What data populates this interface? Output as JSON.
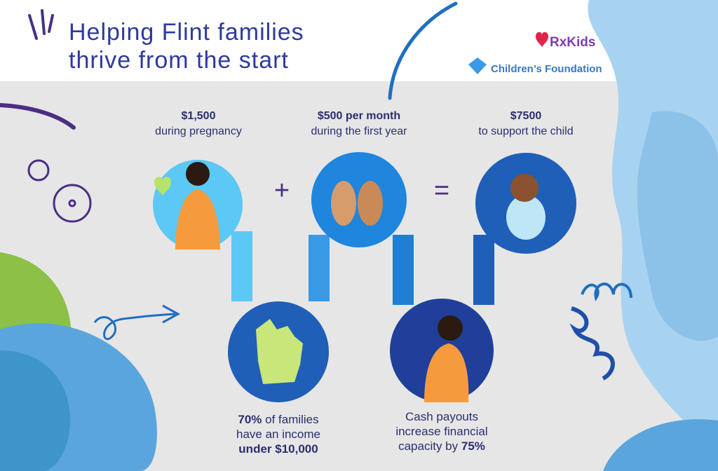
{
  "header": {
    "title_lines": [
      "Helping Flint families",
      "thrive from the start"
    ]
  },
  "logos": {
    "rxkids": "RxKids",
    "foundation": "Children’s Foundation"
  },
  "steps": [
    {
      "amount": "$1,500",
      "detail": "during pregnancy"
    },
    {
      "amount": "$500 per month",
      "detail": "during the first year"
    },
    {
      "amount": "$7500",
      "detail": "to support the child"
    }
  ],
  "operators": [
    "+",
    "="
  ],
  "facts": [
    {
      "lines": [
        [
          {
            "text": "70%",
            "bold": true
          },
          {
            "text": " of families",
            "bold": false
          }
        ],
        [
          {
            "text": "have an income",
            "bold": false
          }
        ],
        [
          {
            "text": "under $10,000",
            "bold": true
          }
        ]
      ]
    },
    {
      "lines": [
        [
          {
            "text": "Cash payouts",
            "bold": false
          }
        ],
        [
          {
            "text": "increase financial",
            "bold": false
          }
        ],
        [
          {
            "text": "capacity by ",
            "bold": false
          },
          {
            "text": "75%",
            "bold": true
          }
        ]
      ]
    }
  ]
}
